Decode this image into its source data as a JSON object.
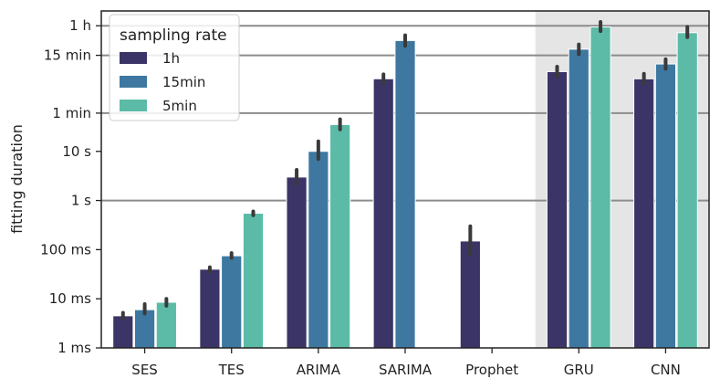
{
  "chart_data": {
    "type": "bar",
    "title": "",
    "xlabel": "",
    "ylabel": "fitting duration",
    "y_scale": "log",
    "y_unit": "seconds",
    "ylim": [
      0.001,
      7200
    ],
    "yticks": [
      {
        "value": 0.001,
        "label": "1 ms"
      },
      {
        "value": 0.01,
        "label": "10 ms"
      },
      {
        "value": 0.1,
        "label": "100 ms"
      },
      {
        "value": 1,
        "label": "1 s"
      },
      {
        "value": 10,
        "label": "10 s"
      },
      {
        "value": 60,
        "label": "1 min"
      },
      {
        "value": 900,
        "label": "15 min"
      },
      {
        "value": 3600,
        "label": "1 h"
      }
    ],
    "gridlines_at": [
      1,
      60,
      900,
      3600
    ],
    "categories": [
      "SES",
      "TES",
      "ARIMA",
      "SARIMA",
      "Prophet",
      "GRU",
      "CNN"
    ],
    "shaded_categories": [
      "GRU",
      "CNN"
    ],
    "legend_title": "sampling rate",
    "legend_position": "top-left",
    "series": [
      {
        "name": "1h",
        "color": "#3b3466",
        "values": [
          0.0045,
          0.04,
          3.0,
          300,
          0.15,
          420,
          300
        ],
        "err_low": [
          0.004,
          0.036,
          2.2,
          250,
          0.08,
          330,
          240
        ],
        "err_high": [
          0.0052,
          0.044,
          4.2,
          370,
          0.3,
          530,
          380
        ]
      },
      {
        "name": "15min",
        "color": "#3e78a0",
        "values": [
          0.006,
          0.075,
          10,
          1800,
          null,
          1200,
          600
        ],
        "err_low": [
          0.005,
          0.068,
          7,
          1400,
          null,
          950,
          480
        ],
        "err_high": [
          0.0078,
          0.085,
          16,
          2300,
          null,
          1500,
          750
        ]
      },
      {
        "name": "5min",
        "color": "#5bbba6",
        "values": [
          0.0085,
          0.55,
          35,
          null,
          null,
          3400,
          2600
        ],
        "err_low": [
          0.0072,
          0.5,
          28,
          null,
          null,
          2800,
          2100
        ],
        "err_high": [
          0.01,
          0.6,
          45,
          null,
          null,
          4300,
          3400
        ]
      }
    ]
  }
}
